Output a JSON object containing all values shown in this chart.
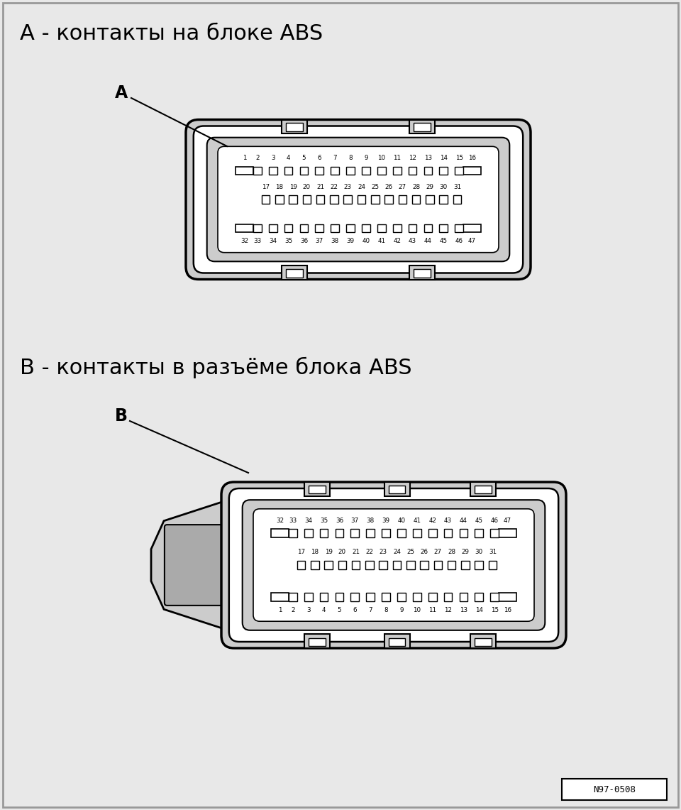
{
  "bg_color": "#e8e8e8",
  "title_A": "А - контакты на блоке ABS",
  "title_B": "В - контакты в разъёме блока ABS",
  "watermark": "N97-0508",
  "font_size_title": 22,
  "font_size_label": 7
}
